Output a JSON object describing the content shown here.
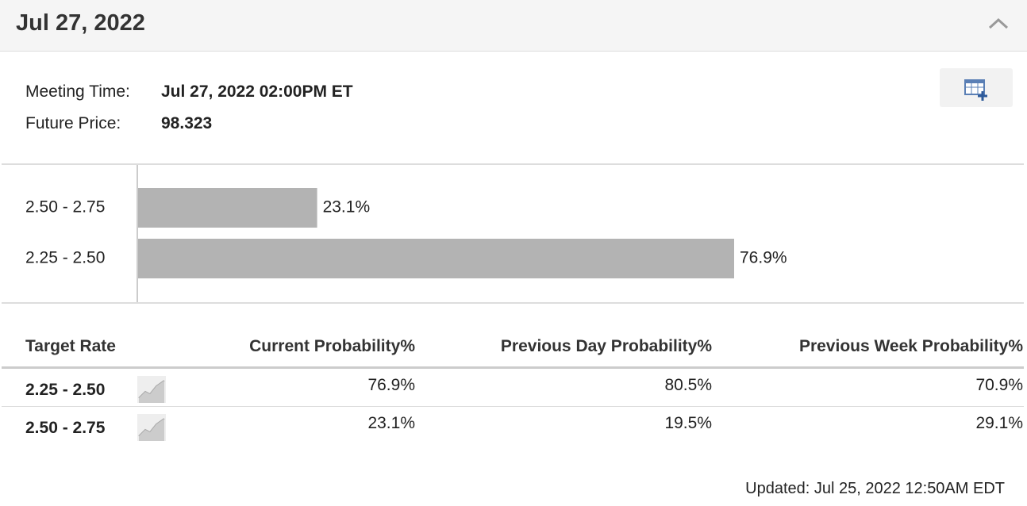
{
  "header": {
    "title": "Jul 27, 2022"
  },
  "meeting": {
    "time_label": "Meeting Time:",
    "time": "Jul 27, 2022 02:00PM ET",
    "price_label": "Future Price:",
    "price": "98.323"
  },
  "chart_data": {
    "type": "bar",
    "orientation": "horizontal",
    "categories": [
      "2.50 - 2.75",
      "2.25 - 2.50"
    ],
    "values": [
      23.1,
      76.9
    ],
    "value_labels": [
      "23.1%",
      "76.9%"
    ],
    "color": "#b3b3b3"
  },
  "table": {
    "columns": [
      "Target Rate",
      "Current Probability%",
      "Previous Day Probability%",
      "Previous Week Probability%"
    ],
    "rows": [
      [
        "2.25 - 2.50",
        "76.9%",
        "80.5%",
        "70.9%"
      ],
      [
        "2.50 - 2.75",
        "23.1%",
        "19.5%",
        "29.1%"
      ]
    ]
  },
  "footer": {
    "updated": "Updated: Jul 25, 2022 12:50AM EDT"
  }
}
